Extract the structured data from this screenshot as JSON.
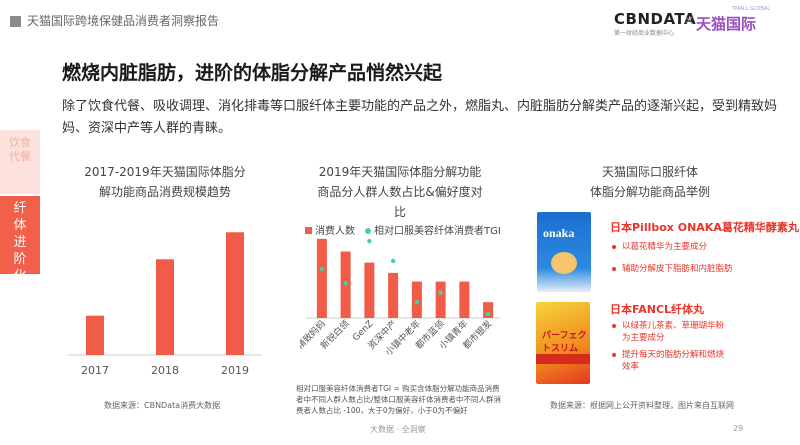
{
  "header": {
    "title": "天猫国际跨境保健品消费者洞察报告",
    "logo_cbn": "CBNDATA",
    "logo_cbn_sub": "第一财经商业数据中心",
    "logo_x": "×",
    "logo_tmall": "天猫国际",
    "logo_tmall_en": "TMALL GLOBAL"
  },
  "main": {
    "title": "燃烧内脏脂肪，进阶的体脂分解产品悄然兴起",
    "description": "除了饮食代餐、吸收调理、消化排毒等口服纤体主要功能的产品之外，燃脂丸、内脏脂肪分解类产品的逐渐兴起，受到精致妈妈、资深中产等人群的青睐。"
  },
  "side_tabs": {
    "inactive": "饮食代餐",
    "active": "纤体进阶化"
  },
  "left_panel": {
    "title_line1": "2017-2019年天猫国际体脂分",
    "title_line2": "解功能商品消费规模趋势",
    "source": "数据来源：CBNData消费大数据"
  },
  "middle_panel": {
    "title_line1": "2019年天猫国际体脂分解功能",
    "title_line2": "商品分人群人数占比&偏好度对",
    "title_line3": "比",
    "legend_bar": "消费人数",
    "legend_dot": "相对口服美容纤体消费者TGI",
    "note": "相对口服美容纤体消费者TGI = 购买含体脂分解功能商品消费者中不同人群人数占比/整体口服美容纤体消费者中不同人群消费者人数占比 -100，大于0为偏好，小于0为不偏好"
  },
  "right_panel": {
    "title_line1": "天猫国际口服纤体",
    "title_line2": "体脂分解功能商品举例",
    "product1": {
      "name": "日本Pillbox ONAKA葛花精华酵素丸",
      "image_text": "onaka",
      "bullet1": "以葛花精华为主要成分",
      "bullet2": "辅助分解皮下脂肪和内脏脂肪"
    },
    "product2": {
      "name": "日本FANCL纤体丸",
      "image_text": "パーフェクトスリム",
      "bullet1": "以绿茶儿茶素、草珊瑚华粉为主要成分",
      "bullet2": "提升每天的脂肪分解和燃烧效率"
    },
    "source": "数据来源：根据网上公开资料整理，图片来自互联网"
  },
  "footer": {
    "text": "大数据 · 全洞察",
    "page": "29"
  },
  "colors": {
    "accent_red": "#f15b47",
    "tgi_green": "#3ed4a3",
    "tab_active": "#f25f4a",
    "tab_inactive": "#fde1dc"
  },
  "chart_data": [
    {
      "type": "bar",
      "categories": [
        "2017",
        "2018",
        "2019"
      ],
      "values": [
        32,
        78,
        100
      ],
      "ylim": [
        0,
        110
      ],
      "grid": false
    },
    {
      "type": "bar",
      "categories": [
        "精致妈妈",
        "新锐白领",
        "GenZ",
        "资深中产",
        "小镇中老年",
        "都市蓝领",
        "小镇青年",
        "都市银发"
      ],
      "series": [
        {
          "name": "消费人数",
          "values": [
            100,
            84,
            70,
            57,
            46,
            46,
            46,
            20
          ]
        },
        {
          "name": "相对口服美容纤体TGI",
          "values": [
            62,
            44,
            97,
            72,
            20,
            32,
            110,
            5
          ]
        }
      ],
      "ylim": [
        0,
        120
      ],
      "legend": "top",
      "grid": false
    }
  ]
}
